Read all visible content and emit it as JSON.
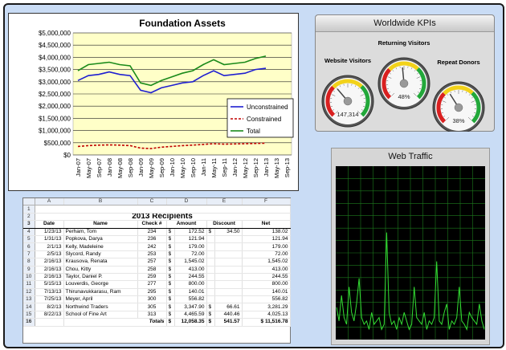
{
  "assets": {
    "chart_data": {
      "type": "line",
      "title": "Foundation Assets",
      "x": [
        "Jan-07",
        "May-07",
        "Sep-07",
        "Jan-08",
        "May-08",
        "Sep-08",
        "Jan-09",
        "May-09",
        "Sep-09",
        "Jan-10",
        "May-10",
        "Sep-10",
        "Jan-11",
        "May-11",
        "Sep-11",
        "Jan-12",
        "May-12",
        "Sep-12",
        "Jan-13",
        "May-13",
        "Sep-13"
      ],
      "ylim": [
        0,
        5000000
      ],
      "yticks": [
        "$0",
        "$500,000",
        "$1,000,000",
        "$1,500,000",
        "$2,000,000",
        "$2,500,000",
        "$3,000,000",
        "$3,500,000",
        "$4,000,000",
        "$4,500,000",
        "$5,000,000"
      ],
      "legend_position": "right",
      "series": [
        {
          "name": "Unconstrained",
          "color": "#1f1fd0",
          "dash": "",
          "values": [
            3050000,
            3250000,
            3300000,
            3400000,
            3300000,
            3250000,
            2650000,
            2550000,
            2750000,
            2850000,
            2950000,
            3000000,
            3250000,
            3450000,
            3250000,
            3300000,
            3350000,
            3500000,
            3550000,
            null,
            null
          ]
        },
        {
          "name": "Constrained",
          "color": "#c00000",
          "dash": "3,2",
          "values": [
            350000,
            380000,
            400000,
            410000,
            400000,
            380000,
            280000,
            260000,
            320000,
            350000,
            380000,
            400000,
            430000,
            460000,
            440000,
            450000,
            460000,
            470000,
            480000,
            null,
            null
          ]
        },
        {
          "name": "Total",
          "color": "#1a8a1a",
          "dash": "",
          "values": [
            3450000,
            3700000,
            3750000,
            3800000,
            3700000,
            3650000,
            2950000,
            2850000,
            3050000,
            3200000,
            3350000,
            3450000,
            3700000,
            3900000,
            3700000,
            3750000,
            3800000,
            3950000,
            4050000,
            null,
            null
          ]
        }
      ]
    }
  },
  "kpis": {
    "title": "Worldwide KPIs",
    "gauges": [
      {
        "label": "Website Visitors",
        "readout": "147,314",
        "level": 0.35
      },
      {
        "label": "Returning Visitors",
        "readout": "48%",
        "level": 0.48
      },
      {
        "label": "Repeat Donors",
        "readout": "38%",
        "level": 0.38
      }
    ]
  },
  "traffic": {
    "title": "Web Traffic",
    "chart_data": {
      "type": "line",
      "x_count": 60,
      "values": [
        0.18,
        0.1,
        0.25,
        0.12,
        0.08,
        0.3,
        0.15,
        0.1,
        0.2,
        0.35,
        0.12,
        0.08,
        0.1,
        0.05,
        0.15,
        0.08,
        0.1,
        0.12,
        0.05,
        0.08,
        0.62,
        0.15,
        0.08,
        0.1,
        0.05,
        0.12,
        0.08,
        0.15,
        0.1,
        0.05,
        0.08,
        0.3,
        0.12,
        0.1,
        0.08,
        0.15,
        0.05,
        0.1,
        0.08,
        0.12,
        0.45,
        0.1,
        0.08,
        0.15,
        0.2,
        0.05,
        0.1,
        0.08,
        0.12,
        0.3,
        0.1,
        0.08,
        0.05,
        0.15,
        0.12,
        0.1,
        0.08,
        0.2,
        0.1,
        0.05
      ],
      "ylim": [
        0,
        1
      ],
      "line_color": "#33dd33",
      "grid": true
    }
  },
  "recipients": {
    "col_letters": [
      "A",
      "B",
      "C",
      "D",
      "E",
      "F"
    ],
    "title": "2013 Recipients",
    "headers": [
      "Date",
      "Name",
      "Check #",
      "Amount",
      "Discount",
      "Net"
    ],
    "rows": [
      [
        "1/23/13",
        "Perham, Tom",
        "234",
        "$",
        "172.52",
        "$",
        "34.50",
        "138.02"
      ],
      [
        "1/31/13",
        "Popkova, Darya",
        "236",
        "$",
        "121.94",
        "",
        "",
        "121.94"
      ],
      [
        "2/1/13",
        "Kelly, Madeleine",
        "242",
        "$",
        "179.00",
        "",
        "",
        "179.00"
      ],
      [
        "2/5/13",
        "Slycord, Randy",
        "253",
        "$",
        "72.00",
        "",
        "",
        "72.00"
      ],
      [
        "2/16/13",
        "Krausova, Renata",
        "257",
        "$",
        "1,545.02",
        "",
        "",
        "1,545.02"
      ],
      [
        "2/16/13",
        "Chou, Kitty",
        "258",
        "$",
        "413.00",
        "",
        "",
        "413.00"
      ],
      [
        "2/16/13",
        "Taylor, Daniel P.",
        "259",
        "$",
        "244.55",
        "",
        "",
        "244.55"
      ],
      [
        "5/15/13",
        "Louverdis, George",
        "277",
        "$",
        "800.00",
        "",
        "",
        "800.00"
      ],
      [
        "7/13/13",
        "Thirunavukkarasu, Ram",
        "295",
        "$",
        "140.01",
        "",
        "",
        "140.01"
      ],
      [
        "7/25/13",
        "Meyer, April",
        "300",
        "$",
        "556.82",
        "",
        "",
        "556.82"
      ],
      [
        "8/2/13",
        "Northwind Traders",
        "305",
        "$",
        "3,347.90",
        "$",
        "66.61",
        "3,281.29"
      ],
      [
        "8/22/13",
        "School of Fine Art",
        "313",
        "$",
        "4,465.59",
        "$",
        "440.46",
        "4,025.13"
      ]
    ],
    "totals": {
      "label": "Totals",
      "amount_sign": "$",
      "amount": "12,058.35",
      "discount_sign": "$",
      "discount": "541.57",
      "net_sign": "$",
      "net": "11,516.78"
    }
  }
}
